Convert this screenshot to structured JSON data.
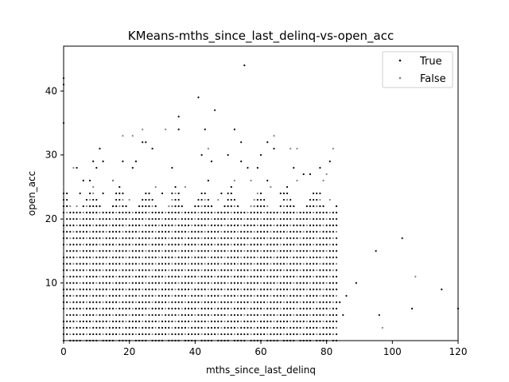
{
  "chart_data": {
    "type": "scatter",
    "title": "KMeans-mths_since_last_delinq-vs-open_acc",
    "xlabel": "mths_since_last_delinq",
    "ylabel": "open_acc",
    "xlim": [
      0,
      120
    ],
    "ylim": [
      1,
      47
    ],
    "xticks": [
      0,
      20,
      40,
      60,
      80,
      100,
      120
    ],
    "yticks": [
      10,
      20,
      30,
      40
    ],
    "grid": false,
    "legend_position": "top-right",
    "series": [
      {
        "name": "True",
        "color": "#000000",
        "points": [
          [
            0,
            42
          ],
          [
            0,
            41
          ],
          [
            0,
            35
          ],
          [
            55,
            44
          ],
          [
            41,
            39
          ],
          [
            46,
            37
          ],
          [
            35,
            36
          ],
          [
            43,
            34
          ],
          [
            52,
            34
          ],
          [
            35,
            34
          ],
          [
            24,
            32
          ],
          [
            25,
            32
          ],
          [
            27,
            31
          ],
          [
            11,
            31
          ],
          [
            54,
            32
          ],
          [
            62,
            32
          ],
          [
            64,
            31
          ],
          [
            60,
            30
          ],
          [
            50,
            30
          ],
          [
            42,
            30
          ],
          [
            18,
            29
          ],
          [
            9,
            29
          ],
          [
            12,
            29
          ],
          [
            22,
            29
          ],
          [
            45,
            29
          ],
          [
            54,
            29
          ],
          [
            59,
            28
          ],
          [
            70,
            28
          ],
          [
            78,
            28
          ],
          [
            81,
            29
          ],
          [
            4,
            28
          ],
          [
            10,
            28
          ],
          [
            33,
            28
          ],
          [
            21,
            28
          ],
          [
            56,
            28
          ],
          [
            6,
            26
          ],
          [
            8,
            26
          ],
          [
            15,
            26
          ],
          [
            44,
            26
          ],
          [
            62,
            26
          ],
          [
            73,
            27
          ],
          [
            75,
            27
          ],
          [
            86,
            8
          ],
          [
            89,
            10
          ],
          [
            95,
            15
          ],
          [
            96,
            5
          ],
          [
            103,
            17
          ],
          [
            106,
            6
          ],
          [
            115,
            9
          ],
          [
            120,
            6
          ],
          [
            84,
            7
          ],
          [
            83,
            3
          ],
          [
            85,
            5
          ],
          [
            82,
            2
          ],
          [
            5,
            24
          ],
          [
            12,
            24
          ],
          [
            30,
            24
          ],
          [
            48,
            24
          ],
          [
            66,
            24
          ],
          [
            78,
            24
          ]
        ]
      },
      {
        "name": "False",
        "color": "#808080",
        "points": [
          [
            3,
            28
          ],
          [
            18,
            33
          ],
          [
            21,
            33
          ],
          [
            24,
            34
          ],
          [
            31,
            34
          ],
          [
            44,
            31
          ],
          [
            64,
            33
          ],
          [
            69,
            31
          ],
          [
            71,
            31
          ],
          [
            82,
            31
          ],
          [
            9,
            25
          ],
          [
            15,
            26
          ],
          [
            28,
            25
          ],
          [
            37,
            25
          ],
          [
            52,
            26
          ],
          [
            57,
            26
          ],
          [
            63,
            25
          ],
          [
            71,
            26
          ],
          [
            79,
            26
          ],
          [
            80,
            27
          ],
          [
            97,
            3
          ],
          [
            107,
            11
          ],
          [
            4,
            22
          ],
          [
            20,
            23
          ],
          [
            33,
            22
          ],
          [
            47,
            23
          ],
          [
            58,
            22
          ],
          [
            68,
            23
          ],
          [
            77,
            22
          ],
          [
            81,
            23
          ]
        ]
      }
    ],
    "dense_region": {
      "x_range": [
        0,
        83
      ],
      "y_range": [
        1,
        25
      ],
      "x_step": 1,
      "y_step": 1
    }
  }
}
